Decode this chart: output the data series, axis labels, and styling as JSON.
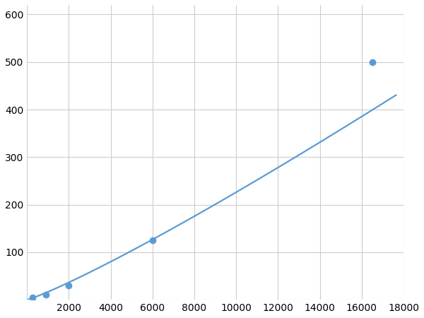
{
  "x_points": [
    250,
    900,
    2000,
    6000,
    16500
  ],
  "y_points": [
    5,
    10,
    30,
    125,
    500
  ],
  "line_color": "#5b9bd5",
  "marker_color": "#5b9bd5",
  "marker_size": 6,
  "line_width": 1.6,
  "xlim": [
    0,
    18000
  ],
  "ylim": [
    0,
    620
  ],
  "xticks": [
    0,
    2000,
    4000,
    6000,
    8000,
    10000,
    12000,
    14000,
    16000,
    18000
  ],
  "yticks": [
    0,
    100,
    200,
    300,
    400,
    500,
    600
  ],
  "grid_color": "#cccccc",
  "bg_color": "#ffffff",
  "tick_fontsize": 10
}
